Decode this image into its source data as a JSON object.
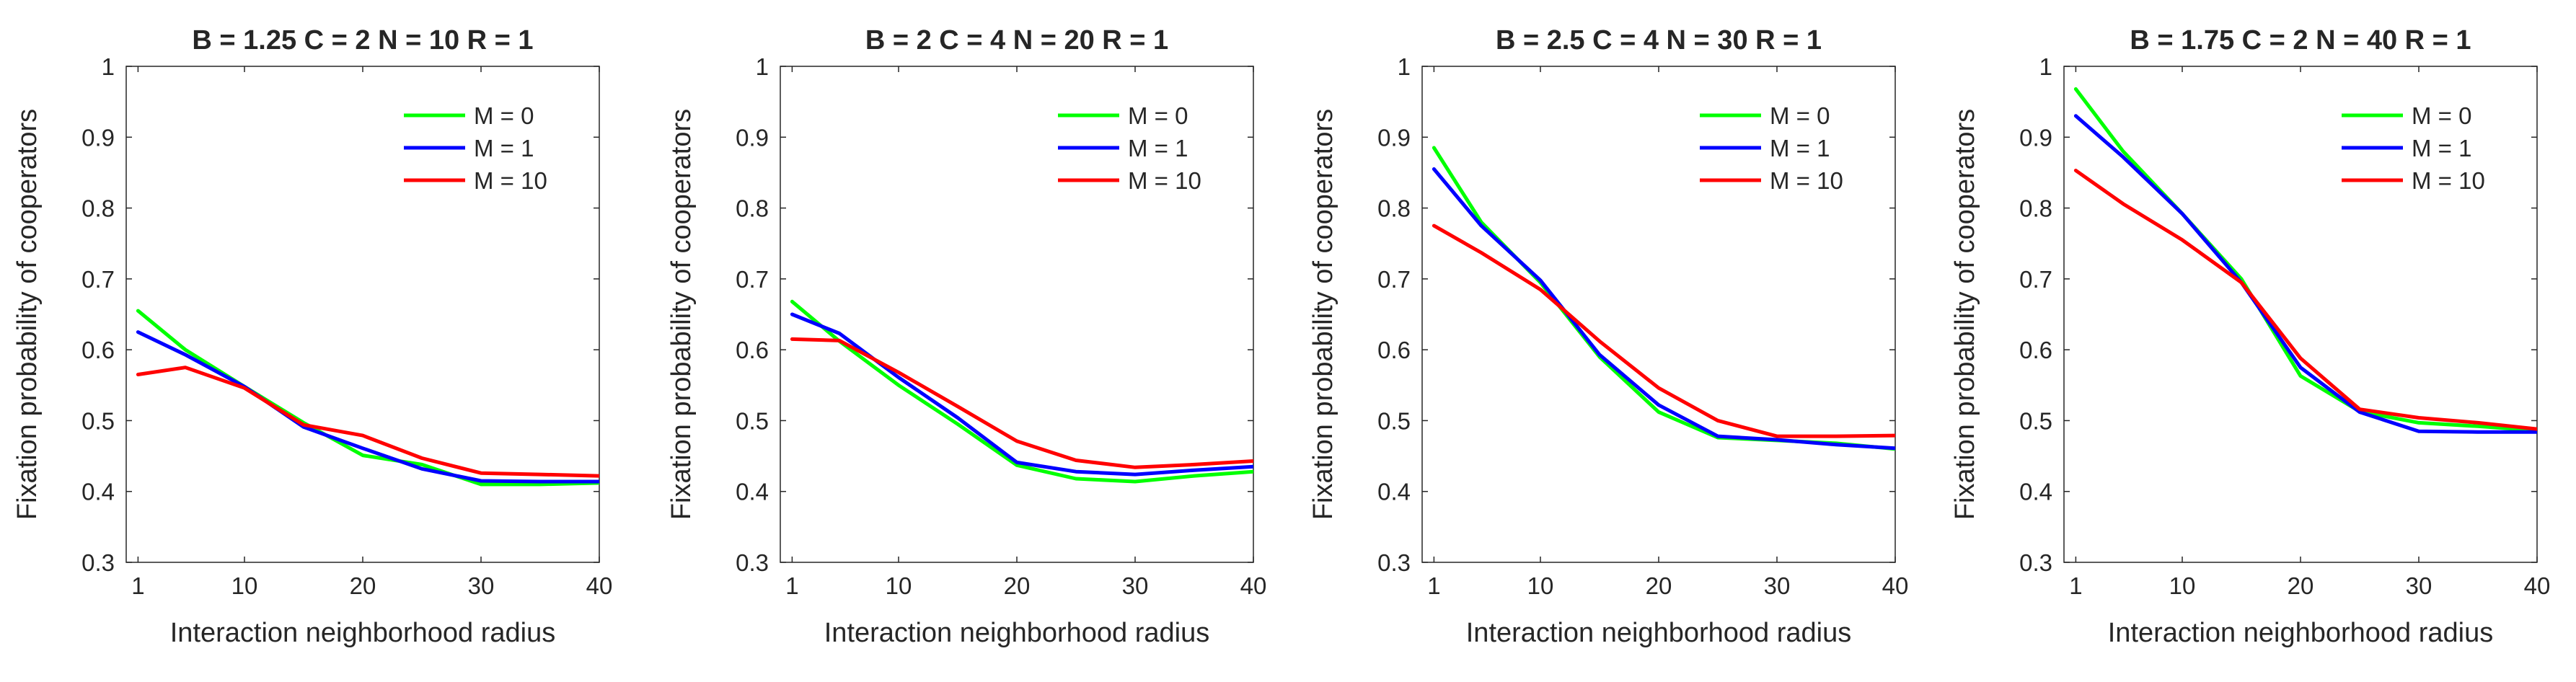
{
  "figure": {
    "chart_data": [
      {
        "type": "line",
        "title": "B = 1.25   C = 2   N = 10   R = 1",
        "xlabel": "Interaction neighborhood radius",
        "ylabel": "Fixation probability of cooperators",
        "xlim": [
          0,
          40
        ],
        "ylim": [
          0.3,
          1
        ],
        "xticks": [
          1,
          10,
          20,
          30,
          40
        ],
        "yticks": [
          0.3,
          0.4,
          0.5,
          0.6,
          0.7,
          0.8,
          0.9,
          1
        ],
        "ytick_labels": [
          "0.3",
          "0.4",
          "0.5",
          "0.6",
          "0.7",
          "0.8",
          "0.9",
          "1"
        ],
        "legend_position": "top-right",
        "x": [
          1,
          5,
          10,
          15,
          20,
          25,
          30,
          35,
          40
        ],
        "series": [
          {
            "name": "M = 0",
            "color": "#00ff00",
            "values": [
              0.655,
              0.6,
              0.548,
              0.497,
              0.451,
              0.438,
              0.41,
              0.41,
              0.412
            ]
          },
          {
            "name": "M = 1",
            "color": "#0000ff",
            "values": [
              0.625,
              0.593,
              0.548,
              0.491,
              0.461,
              0.432,
              0.415,
              0.414,
              0.414
            ]
          },
          {
            "name": "M = 10",
            "color": "#ff0000",
            "values": [
              0.565,
              0.575,
              0.546,
              0.494,
              0.479,
              0.447,
              0.426,
              0.424,
              0.422
            ]
          }
        ]
      },
      {
        "type": "line",
        "title": "B = 2   C = 4   N = 20   R = 1",
        "xlabel": "Interaction neighborhood radius",
        "ylabel": "Fixation probability of cooperators",
        "xlim": [
          0,
          40
        ],
        "ylim": [
          0.3,
          1
        ],
        "xticks": [
          1,
          10,
          20,
          30,
          40
        ],
        "yticks": [
          0.3,
          0.4,
          0.5,
          0.6,
          0.7,
          0.8,
          0.9,
          1
        ],
        "ytick_labels": [
          "0.3",
          "0.4",
          "0.5",
          "0.6",
          "0.7",
          "0.8",
          "0.9",
          "1"
        ],
        "legend_position": "top-right",
        "x": [
          1,
          5,
          10,
          15,
          20,
          25,
          30,
          35,
          40
        ],
        "series": [
          {
            "name": "M = 0",
            "color": "#00ff00",
            "values": [
              0.668,
              0.612,
              0.55,
              0.495,
              0.437,
              0.418,
              0.414,
              0.422,
              0.428
            ]
          },
          {
            "name": "M = 1",
            "color": "#0000ff",
            "values": [
              0.65,
              0.623,
              0.561,
              0.504,
              0.441,
              0.428,
              0.424,
              0.43,
              0.435
            ]
          },
          {
            "name": "M = 10",
            "color": "#ff0000",
            "values": [
              0.615,
              0.613,
              0.568,
              0.52,
              0.471,
              0.444,
              0.434,
              0.438,
              0.443
            ]
          }
        ]
      },
      {
        "type": "line",
        "title": "B = 2.5   C = 4   N = 30   R = 1",
        "xlabel": "Interaction neighborhood radius",
        "ylabel": "Fixation probability of cooperators",
        "xlim": [
          0,
          40
        ],
        "ylim": [
          0.3,
          1
        ],
        "xticks": [
          1,
          10,
          20,
          30,
          40
        ],
        "yticks": [
          0.3,
          0.4,
          0.5,
          0.6,
          0.7,
          0.8,
          0.9,
          1
        ],
        "ytick_labels": [
          "0.3",
          "0.4",
          "0.5",
          "0.6",
          "0.7",
          "0.8",
          "0.9",
          "1"
        ],
        "legend_position": "top-right",
        "x": [
          1,
          5,
          10,
          15,
          20,
          25,
          30,
          35,
          40
        ],
        "series": [
          {
            "name": "M = 0",
            "color": "#00ff00",
            "values": [
              0.885,
              0.78,
              0.695,
              0.59,
              0.512,
              0.476,
              0.472,
              0.468,
              0.46
            ]
          },
          {
            "name": "M = 1",
            "color": "#0000ff",
            "values": [
              0.855,
              0.775,
              0.698,
              0.593,
              0.522,
              0.478,
              0.473,
              0.466,
              0.461
            ]
          },
          {
            "name": "M = 10",
            "color": "#ff0000",
            "values": [
              0.775,
              0.737,
              0.685,
              0.612,
              0.546,
              0.5,
              0.478,
              0.478,
              0.479
            ]
          }
        ]
      },
      {
        "type": "line",
        "title": "B = 1.75   C = 2   N = 40   R = 1",
        "xlabel": "Interaction neighborhood radius",
        "ylabel": "Fixation probability of cooperators",
        "xlim": [
          0,
          40
        ],
        "ylim": [
          0.3,
          1
        ],
        "xticks": [
          1,
          10,
          20,
          30,
          40
        ],
        "yticks": [
          0.3,
          0.4,
          0.5,
          0.6,
          0.7,
          0.8,
          0.9,
          1
        ],
        "ytick_labels": [
          "0.3",
          "0.4",
          "0.5",
          "0.6",
          "0.7",
          "0.8",
          "0.9",
          "1"
        ],
        "legend_position": "top-right",
        "x": [
          1,
          5,
          10,
          15,
          20,
          25,
          30,
          35,
          40
        ],
        "series": [
          {
            "name": "M = 0",
            "color": "#00ff00",
            "values": [
              0.968,
              0.88,
              0.792,
              0.7,
              0.563,
              0.513,
              0.497,
              0.492,
              0.486
            ]
          },
          {
            "name": "M = 1",
            "color": "#0000ff",
            "values": [
              0.93,
              0.872,
              0.792,
              0.695,
              0.575,
              0.512,
              0.485,
              0.484,
              0.484
            ]
          },
          {
            "name": "M = 10",
            "color": "#ff0000",
            "values": [
              0.853,
              0.806,
              0.755,
              0.695,
              0.588,
              0.516,
              0.504,
              0.497,
              0.488
            ]
          }
        ]
      }
    ]
  }
}
